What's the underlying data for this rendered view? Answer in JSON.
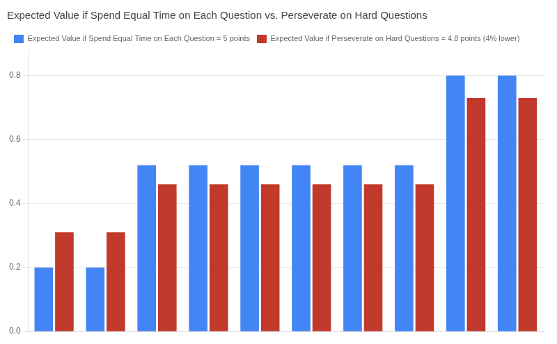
{
  "chart_data": {
    "type": "bar",
    "title": "Expected Value if Spend Equal Time on Each Question vs. Perseverate on Hard Questions",
    "categories": [
      null,
      null,
      null,
      null,
      null,
      null,
      null,
      null,
      null,
      null
    ],
    "series": [
      {
        "name": "Expected Value if Spend Equal Time on Each Question = 5 points",
        "color": "#4285F4",
        "values": [
          0.2,
          0.2,
          0.52,
          0.52,
          0.52,
          0.52,
          0.52,
          0.52,
          0.8,
          0.8
        ]
      },
      {
        "name": "Expected Value if Perseverate on Hard Questions = 4.8 points (4% lower)",
        "color": "#C0392B",
        "values": [
          0.31,
          0.31,
          0.46,
          0.46,
          0.46,
          0.46,
          0.46,
          0.46,
          0.73,
          0.73
        ]
      }
    ],
    "ylim": [
      0,
      0.88
    ],
    "yticks": [
      {
        "value": 0.0,
        "label": "0.0"
      },
      0.2,
      0.4,
      0.6,
      0.8
    ],
    "grid": true,
    "legend": "upper left",
    "tick_labels": "y"
  }
}
